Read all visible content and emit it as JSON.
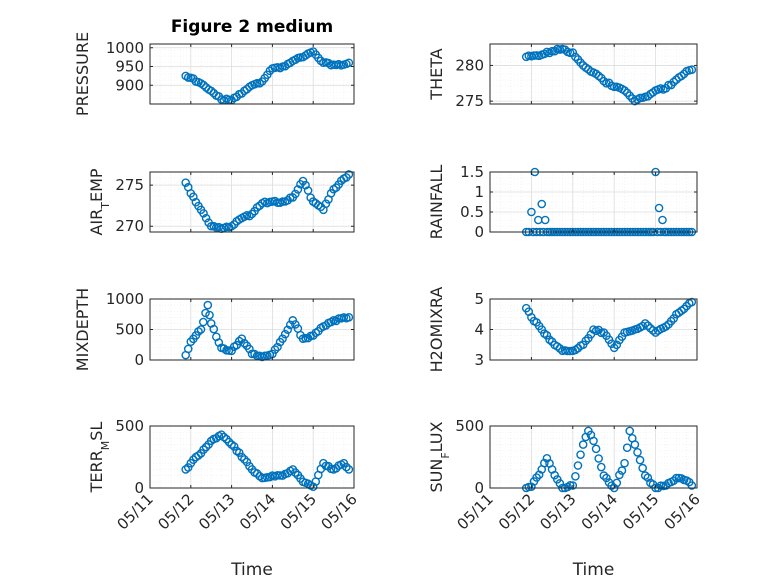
{
  "chart_data": {
    "type": "scatter",
    "title": "Figure 2 medium",
    "xlabel": "Time",
    "x_ticks": [
      "05/11",
      "05/12",
      "05/13",
      "05/14",
      "05/15",
      "05/16"
    ],
    "marker_color": "#0072BD",
    "grid": true,
    "panels": [
      {
        "name": "pressure",
        "ylabel": "PRESSURE",
        "ylim": [
          850,
          1010
        ],
        "yticks": [
          900,
          950,
          1000
        ],
        "x": [
          "05/11 21:00",
          "05/12 00:00",
          "05/12 06:00",
          "05/12 12:00",
          "05/12 18:00",
          "05/13 00:00",
          "05/13 06:00",
          "05/13 12:00",
          "05/13 18:00",
          "05/14 00:00",
          "05/14 06:00",
          "05/14 12:00",
          "05/14 18:00",
          "05/15 00:00",
          "05/15 06:00",
          "05/15 12:00",
          "05/15 18:00",
          "05/15 21:00"
        ],
        "values": [
          925,
          920,
          905,
          885,
          862,
          860,
          878,
          900,
          910,
          945,
          950,
          965,
          975,
          990,
          960,
          955,
          955,
          960
        ]
      },
      {
        "name": "theta",
        "ylabel": "THETA",
        "ylim": [
          274.6,
          283.0
        ],
        "yticks": [
          275,
          280
        ],
        "x": [
          "05/11 21:00",
          "05/12 06:00",
          "05/12 12:00",
          "05/12 18:00",
          "05/13 00:00",
          "05/13 06:00",
          "05/13 12:00",
          "05/13 18:00",
          "05/14 00:00",
          "05/14 06:00",
          "05/14 12:00",
          "05/14 18:00",
          "05/15 00:00",
          "05/15 06:00",
          "05/15 12:00",
          "05/15 18:00",
          "05/15 21:00"
        ],
        "values": [
          281.2,
          281.5,
          282.0,
          282.3,
          281.8,
          280.0,
          279.0,
          277.8,
          277.0,
          276.5,
          275.0,
          275.6,
          276.5,
          276.8,
          278.0,
          279.2,
          279.4
        ]
      },
      {
        "name": "air_temp",
        "ylabel": "AIR_TEMP",
        "ylim": [
          269.3,
          276.6
        ],
        "yticks": [
          270,
          275
        ],
        "x": [
          "05/11 21:00",
          "05/12 00:00",
          "05/12 06:00",
          "05/12 12:00",
          "05/12 18:00",
          "05/13 00:00",
          "05/13 06:00",
          "05/13 12:00",
          "05/13 18:00",
          "05/14 00:00",
          "05/14 06:00",
          "05/14 12:00",
          "05/14 18:00",
          "05/15 00:00",
          "05/15 06:00",
          "05/15 12:00",
          "05/15 18:00",
          "05/15 21:00"
        ],
        "values": [
          275.3,
          274.0,
          272.0,
          270.0,
          269.7,
          270.0,
          271.0,
          271.5,
          272.8,
          273.0,
          273.0,
          273.5,
          275.5,
          273.0,
          272.0,
          274.5,
          275.8,
          276.3
        ]
      },
      {
        "name": "rainfall",
        "ylabel": "RAINFALL",
        "ylim": [
          0,
          1.5
        ],
        "yticks": [
          0,
          0.5,
          1,
          1.5
        ],
        "x": [
          "05/11 21:00",
          "05/12 00:00",
          "05/12 02:00",
          "05/12 04:00",
          "05/12 06:00",
          "05/12 08:00",
          "05/12 12:00",
          "05/13 00:00",
          "05/14 00:00",
          "05/14 20:00",
          "05/15 00:00",
          "05/15 02:00",
          "05/15 04:00",
          "05/15 06:00",
          "05/15 12:00",
          "05/15 21:00"
        ],
        "values": [
          0,
          0.5,
          1.5,
          0.3,
          0.7,
          0.3,
          0,
          0,
          0,
          0,
          1.5,
          0.6,
          0.3,
          0,
          0,
          0
        ]
      },
      {
        "name": "mixdepth",
        "ylabel": "MIXDEPTH",
        "ylim": [
          0,
          1000
        ],
        "yticks": [
          0,
          500,
          1000
        ],
        "x": [
          "05/11 21:00",
          "05/12 00:00",
          "05/12 06:00",
          "05/12 10:00",
          "05/12 12:00",
          "05/12 18:00",
          "05/13 00:00",
          "05/13 06:00",
          "05/13 12:00",
          "05/13 18:00",
          "05/14 00:00",
          "05/14 06:00",
          "05/14 12:00",
          "05/14 18:00",
          "05/15 00:00",
          "05/15 06:00",
          "05/15 12:00",
          "05/15 21:00"
        ],
        "values": [
          80,
          300,
          500,
          900,
          600,
          200,
          150,
          350,
          100,
          50,
          100,
          350,
          650,
          350,
          400,
          550,
          650,
          700
        ]
      },
      {
        "name": "h2omixra",
        "ylabel": "H2OMIXRA",
        "ylim": [
          3,
          5
        ],
        "yticks": [
          3,
          4,
          5
        ],
        "x": [
          "05/11 21:00",
          "05/12 00:00",
          "05/12 06:00",
          "05/12 12:00",
          "05/12 18:00",
          "05/13 00:00",
          "05/13 06:00",
          "05/13 12:00",
          "05/13 18:00",
          "05/14 00:00",
          "05/14 06:00",
          "05/14 12:00",
          "05/14 18:00",
          "05/15 00:00",
          "05/15 06:00",
          "05/15 12:00",
          "05/15 21:00"
        ],
        "values": [
          4.7,
          4.4,
          4.0,
          3.6,
          3.3,
          3.3,
          3.5,
          4.0,
          3.9,
          3.4,
          3.9,
          4.0,
          4.2,
          3.9,
          4.1,
          4.5,
          4.9
        ]
      },
      {
        "name": "terr_msl",
        "ylabel": "TERR_MSL",
        "ylim": [
          0,
          500
        ],
        "yticks": [
          0,
          500
        ],
        "x": [
          "05/11 21:00",
          "05/12 00:00",
          "05/12 06:00",
          "05/12 12:00",
          "05/12 18:00",
          "05/13 00:00",
          "05/13 06:00",
          "05/13 12:00",
          "05/13 18:00",
          "05/14 00:00",
          "05/14 06:00",
          "05/14 12:00",
          "05/14 18:00",
          "05/15 00:00",
          "05/15 06:00",
          "05/15 12:00",
          "05/15 18:00",
          "05/15 21:00"
        ],
        "values": [
          150,
          200,
          280,
          380,
          430,
          350,
          250,
          150,
          80,
          100,
          100,
          150,
          50,
          10,
          200,
          150,
          200,
          150
        ]
      },
      {
        "name": "sun_flux",
        "ylabel": "SUN_FLUX",
        "ylim": [
          0,
          500
        ],
        "yticks": [
          0,
          500
        ],
        "x": [
          "05/11 21:00",
          "05/12 00:00",
          "05/12 06:00",
          "05/12 09:00",
          "05/12 12:00",
          "05/12 18:00",
          "05/13 00:00",
          "05/13 06:00",
          "05/13 09:00",
          "05/13 12:00",
          "05/13 18:00",
          "05/14 00:00",
          "05/14 06:00",
          "05/14 09:00",
          "05/14 12:00",
          "05/14 18:00",
          "05/15 00:00",
          "05/15 06:00",
          "05/15 12:00",
          "05/15 18:00",
          "05/15 21:00"
        ],
        "values": [
          0,
          10,
          150,
          240,
          150,
          0,
          20,
          350,
          460,
          380,
          100,
          0,
          200,
          460,
          350,
          100,
          0,
          20,
          80,
          60,
          20
        ]
      }
    ]
  }
}
